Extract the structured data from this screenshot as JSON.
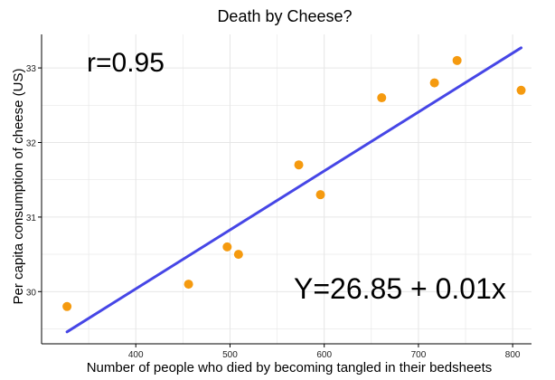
{
  "chart_data": {
    "type": "scatter",
    "title": "Death by Cheese?",
    "xlabel": "Number of people who died by becoming tangled in their bedsheets",
    "ylabel": "Per capita consumption of cheese (US)",
    "xlim": [
      300,
      820
    ],
    "ylim": [
      29.3,
      33.45
    ],
    "xticks": [
      400,
      500,
      600,
      700,
      800
    ],
    "yticks": [
      30,
      31,
      32,
      33
    ],
    "grid": true,
    "points": [
      {
        "x": 327,
        "y": 29.8
      },
      {
        "x": 456,
        "y": 30.1
      },
      {
        "x": 497,
        "y": 30.6
      },
      {
        "x": 509,
        "y": 30.5
      },
      {
        "x": 573,
        "y": 31.7
      },
      {
        "x": 596,
        "y": 31.3
      },
      {
        "x": 661,
        "y": 32.6
      },
      {
        "x": 717,
        "y": 32.8
      },
      {
        "x": 741,
        "y": 33.1
      },
      {
        "x": 809,
        "y": 32.7
      }
    ],
    "fit_line": {
      "x": [
        327,
        809
      ],
      "y": [
        29.46,
        33.27
      ]
    },
    "colors": {
      "points": "#f59a0f",
      "fit_line": "#4646e6",
      "grid": "#e6e6e6",
      "axis": "#000000"
    },
    "annotations": [
      {
        "text": "r=0.95"
      },
      {
        "text": "Y=26.85 + 0.01x"
      }
    ]
  }
}
